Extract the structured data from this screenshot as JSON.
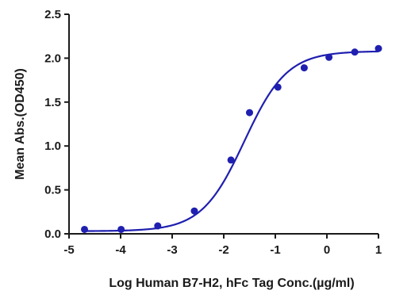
{
  "chart_data": {
    "type": "scatter",
    "title": "",
    "xlabel": "Log Human B7-H2, hFc Tag Conc.(µg/ml)",
    "ylabel": "Mean Abs.(OD450)",
    "xlim": [
      -5,
      1
    ],
    "ylim": [
      0,
      2.5
    ],
    "x_ticks": [
      -5,
      -4,
      -3,
      -2,
      -1,
      0,
      1
    ],
    "x_tick_labels": [
      "-5",
      "-4",
      "-3",
      "-2",
      "-1",
      "0",
      "1"
    ],
    "y_ticks": [
      0,
      0.5,
      1.0,
      1.5,
      2.0,
      2.5
    ],
    "y_tick_labels": [
      "0.0",
      "0.5",
      "1.0",
      "1.5",
      "2.0",
      "2.5"
    ],
    "grid": false,
    "legend": "none",
    "series": [
      {
        "color": "#1f1fb0",
        "points": [
          {
            "x": -4.7,
            "y": 0.05
          },
          {
            "x": -3.99,
            "y": 0.05
          },
          {
            "x": -3.28,
            "y": 0.09
          },
          {
            "x": -2.57,
            "y": 0.26
          },
          {
            "x": -1.86,
            "y": 0.84
          },
          {
            "x": -1.5,
            "y": 1.38
          },
          {
            "x": -0.95,
            "y": 1.67
          },
          {
            "x": -0.44,
            "y": 1.89
          },
          {
            "x": 0.04,
            "y": 2.01
          },
          {
            "x": 0.54,
            "y": 2.07
          },
          {
            "x": 1.0,
            "y": 2.11
          }
        ],
        "fit": {
          "model": "4PL",
          "bottom": 0.03,
          "top": 2.08,
          "logEC50": -1.6,
          "hill": 1.05,
          "x_range": [
            -4.7,
            1.0
          ]
        }
      }
    ]
  }
}
